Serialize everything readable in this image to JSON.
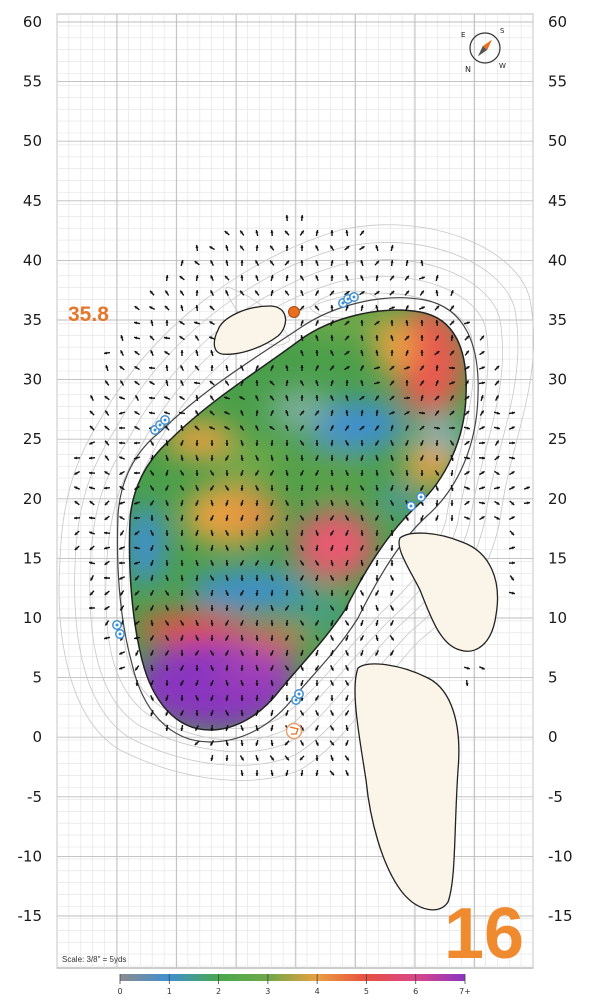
{
  "hole": {
    "number": "16",
    "elevation_note": "35.8",
    "scale_note": "Scale: 3/8\" = 5yds"
  },
  "compass": {
    "n": "N",
    "e": "E",
    "s": "S",
    "w": "W"
  },
  "axis": {
    "y_labels": [
      "60",
      "55",
      "50",
      "45",
      "40",
      "35",
      "30",
      "25",
      "20",
      "15",
      "10",
      "5",
      "0",
      "-5",
      "-10",
      "-15"
    ],
    "unit": "yds"
  },
  "legend": {
    "ticks": [
      "0",
      "1",
      "2",
      "3",
      "4",
      "5",
      "6",
      "7+"
    ],
    "colors": [
      "#8c8c8c",
      "#3f8fd0",
      "#4aa84a",
      "#6fa84a",
      "#e9a040",
      "#e85040",
      "#d8468a",
      "#8a35c0"
    ]
  },
  "colors": {
    "hole_number": "#f08a2e",
    "sand": "#fbf4e8",
    "grid_major": "#b9b9b9",
    "grid_minor": "#e2e2e2",
    "sprinkler": "#3f8fd0"
  },
  "icons": [
    "compass-icon",
    "flag-pin-icon",
    "sprinkler-icon",
    "slope-arrow-icon"
  ]
}
